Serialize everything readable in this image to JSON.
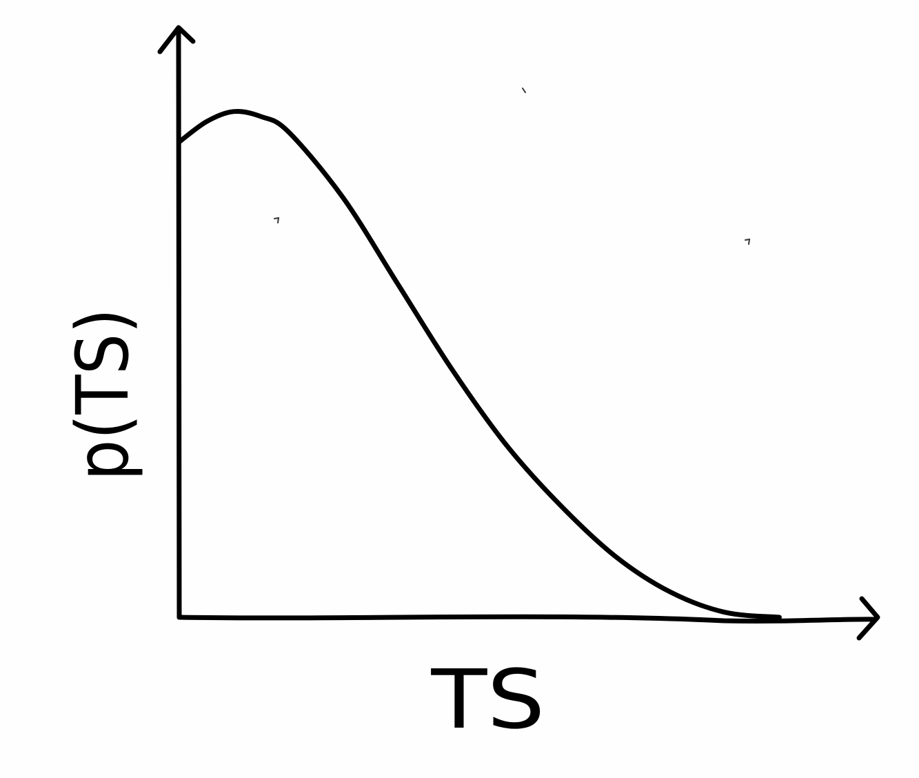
{
  "chart_data": {
    "type": "line",
    "title": "",
    "xlabel": "TS",
    "ylabel": "p(TS)",
    "grid": false,
    "legend": "none",
    "xlim": [
      0,
      1.15
    ],
    "ylim": [
      0,
      1.05
    ],
    "series": [
      {
        "x": [
          0,
          0.05,
          0.1,
          0.15,
          0.2,
          0.3,
          0.4,
          0.5,
          0.6,
          0.7,
          0.8,
          0.9,
          1.0,
          1.1
        ],
        "y": [
          0.94,
          0.98,
          1.0,
          0.99,
          0.96,
          0.83,
          0.66,
          0.49,
          0.34,
          0.22,
          0.12,
          0.05,
          0.01,
          0.0
        ]
      }
    ],
    "colors": {
      "ink": "#000000",
      "paper": "#fefefe"
    }
  }
}
